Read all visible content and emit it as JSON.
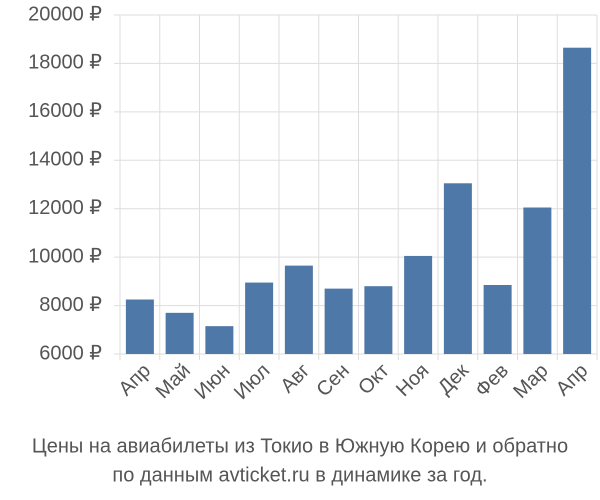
{
  "chart_data": {
    "type": "bar",
    "title": "Цены на авиабилеты из Токио в Южную Корею и обратно",
    "subtitle": "по данным avticket.ru в динамике за год.",
    "categories": [
      "Апр",
      "Май",
      "Июн",
      "Июл",
      "Авг",
      "Сен",
      "Окт",
      "Ноя",
      "Дек",
      "Фев",
      "Мар",
      "Апр"
    ],
    "values": [
      8250,
      7700,
      7150,
      8950,
      9650,
      8700,
      8800,
      10050,
      13050,
      8850,
      12050,
      18650
    ],
    "color": "#4e78a8",
    "ylim": [
      6000,
      20000
    ],
    "yticks": [
      {
        "value": 6000,
        "label": "6000 ₽"
      },
      {
        "value": 8000,
        "label": "8000 ₽"
      },
      {
        "value": 10000,
        "label": "10000 ₽"
      },
      {
        "value": 12000,
        "label": "12000 ₽"
      },
      {
        "value": 14000,
        "label": "14000 ₽"
      },
      {
        "value": 16000,
        "label": "16000 ₽"
      },
      {
        "value": 18000,
        "label": "18000 ₽"
      },
      {
        "value": 20000,
        "label": "20000 ₽"
      }
    ],
    "grid": true
  }
}
